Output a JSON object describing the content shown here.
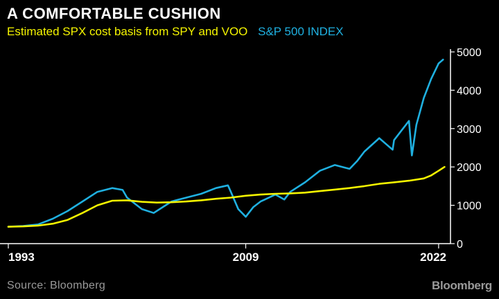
{
  "header": {
    "title": "A COMFORTABLE CUSHION",
    "title_color": "#ffffff"
  },
  "footer": {
    "source": "Source: Bloomberg",
    "source_color": "#9a9a9a",
    "brand": "Bloomberg",
    "brand_color": "#9a9a9a"
  },
  "chart_data": {
    "type": "line",
    "title": "A COMFORTABLE CUSHION",
    "xlabel": "",
    "ylabel": "",
    "x_tick_labels": [
      "1993",
      "2009",
      "2022"
    ],
    "x_ticks": [
      1993,
      2009,
      2022
    ],
    "xlim": [
      1993,
      2022.8
    ],
    "ylim": [
      0,
      5000
    ],
    "y_ticks": [
      0,
      1000,
      2000,
      3000,
      4000,
      5000
    ],
    "y_tick_labels": [
      "0",
      "1000",
      "2000",
      "3000",
      "4000",
      "5000"
    ],
    "y_axis_position": "right",
    "grid": false,
    "legend_position": "top-left",
    "series": [
      {
        "name": "Estimated SPX cost basis from SPY and VOO",
        "color": "#f5f500",
        "points": [
          [
            1993.0,
            440
          ],
          [
            1994.0,
            450
          ],
          [
            1995.0,
            470
          ],
          [
            1996.0,
            520
          ],
          [
            1997.0,
            620
          ],
          [
            1998.0,
            800
          ],
          [
            1999.0,
            1000
          ],
          [
            2000.0,
            1120
          ],
          [
            2001.0,
            1130
          ],
          [
            2002.0,
            1090
          ],
          [
            2003.0,
            1070
          ],
          [
            2004.0,
            1080
          ],
          [
            2005.0,
            1100
          ],
          [
            2006.0,
            1130
          ],
          [
            2007.0,
            1170
          ],
          [
            2008.0,
            1200
          ],
          [
            2009.0,
            1250
          ],
          [
            2010.0,
            1280
          ],
          [
            2011.0,
            1300
          ],
          [
            2012.0,
            1310
          ],
          [
            2013.0,
            1330
          ],
          [
            2014.0,
            1370
          ],
          [
            2015.0,
            1410
          ],
          [
            2016.0,
            1450
          ],
          [
            2017.0,
            1500
          ],
          [
            2018.0,
            1560
          ],
          [
            2019.0,
            1600
          ],
          [
            2020.0,
            1640
          ],
          [
            2021.0,
            1700
          ],
          [
            2021.5,
            1780
          ],
          [
            2022.0,
            1900
          ],
          [
            2022.4,
            2000
          ]
        ]
      },
      {
        "name": "S&P 500 INDEX",
        "color": "#1fb0e0",
        "points": [
          [
            1993.0,
            440
          ],
          [
            1994.0,
            460
          ],
          [
            1995.0,
            500
          ],
          [
            1996.0,
            650
          ],
          [
            1997.0,
            850
          ],
          [
            1998.0,
            1100
          ],
          [
            1999.0,
            1350
          ],
          [
            2000.0,
            1450
          ],
          [
            2000.7,
            1400
          ],
          [
            2001.0,
            1200
          ],
          [
            2002.0,
            900
          ],
          [
            2002.8,
            800
          ],
          [
            2003.0,
            850
          ],
          [
            2004.0,
            1100
          ],
          [
            2005.0,
            1200
          ],
          [
            2006.0,
            1300
          ],
          [
            2007.0,
            1450
          ],
          [
            2007.8,
            1520
          ],
          [
            2008.0,
            1350
          ],
          [
            2008.5,
            900
          ],
          [
            2009.0,
            700
          ],
          [
            2009.5,
            950
          ],
          [
            2010.0,
            1100
          ],
          [
            2011.0,
            1280
          ],
          [
            2011.6,
            1150
          ],
          [
            2012.0,
            1350
          ],
          [
            2013.0,
            1600
          ],
          [
            2014.0,
            1900
          ],
          [
            2015.0,
            2050
          ],
          [
            2016.0,
            1950
          ],
          [
            2016.5,
            2150
          ],
          [
            2017.0,
            2400
          ],
          [
            2018.0,
            2750
          ],
          [
            2018.9,
            2450
          ],
          [
            2019.0,
            2700
          ],
          [
            2019.5,
            2950
          ],
          [
            2020.0,
            3200
          ],
          [
            2020.2,
            2300
          ],
          [
            2020.5,
            3100
          ],
          [
            2021.0,
            3800
          ],
          [
            2021.5,
            4300
          ],
          [
            2022.0,
            4700
          ],
          [
            2022.3,
            4800
          ]
        ]
      }
    ]
  }
}
